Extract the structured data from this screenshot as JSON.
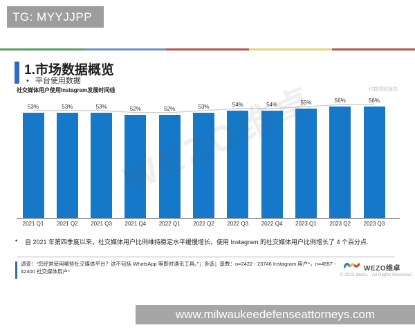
{
  "overlay": {
    "tg_badge": "TG: MYYJJPP",
    "url_bar": "www.milwaukeedefenseattorneys.com"
  },
  "slide": {
    "title": "1.市场数据概览",
    "subtitle_bullet": "平台使用数据",
    "scan_hint": "扫描领取报告",
    "watermark": "WEZO维卓",
    "insight_bullet": "自 2021 年第四季度以来，社交媒体用户比例维持稳定水平缓慢增长，使用 Instagram 的社交媒体用户比例增长了 4 个百分点.",
    "footnote": "调查：“您经常使用哪些社交媒体平台？这不包括 WhatsApp 等即时通讯工具。”；多选；基数：n=2422 - 23746 Instagram 用户*，n=4557 - 42400 社交媒体用户*",
    "divider_colors": [
      "#55a05f",
      "#6b8fc9",
      "#b0564a",
      "#e7d37a",
      "#b0564a"
    ],
    "accent_color": "#3468c8",
    "logo": {
      "name": "WEZO维卓",
      "copyright": "© 2023 Wezo. - All Rights Reserved"
    }
  },
  "chart_data": {
    "type": "bar",
    "title": "社交媒体用户使用Instagram发展时间线",
    "categories": [
      "2021 Q1",
      "2021 Q2",
      "2021 Q3",
      "2021 Q4",
      "2022 Q1",
      "2022 Q2",
      "2022 Q3",
      "2022 Q4",
      "2023 Q1",
      "2023 Q2",
      "2023 Q3"
    ],
    "values": [
      53,
      53,
      53,
      52,
      52,
      53,
      54,
      54,
      55,
      56,
      56
    ],
    "unit": "%",
    "ylim": [
      0,
      60
    ],
    "xlabel": "",
    "ylabel": "",
    "grid": false,
    "legend": "none",
    "bar_color": "#1678C8",
    "trendline_color": "#c9c9c9",
    "data_labels_shown": true
  }
}
